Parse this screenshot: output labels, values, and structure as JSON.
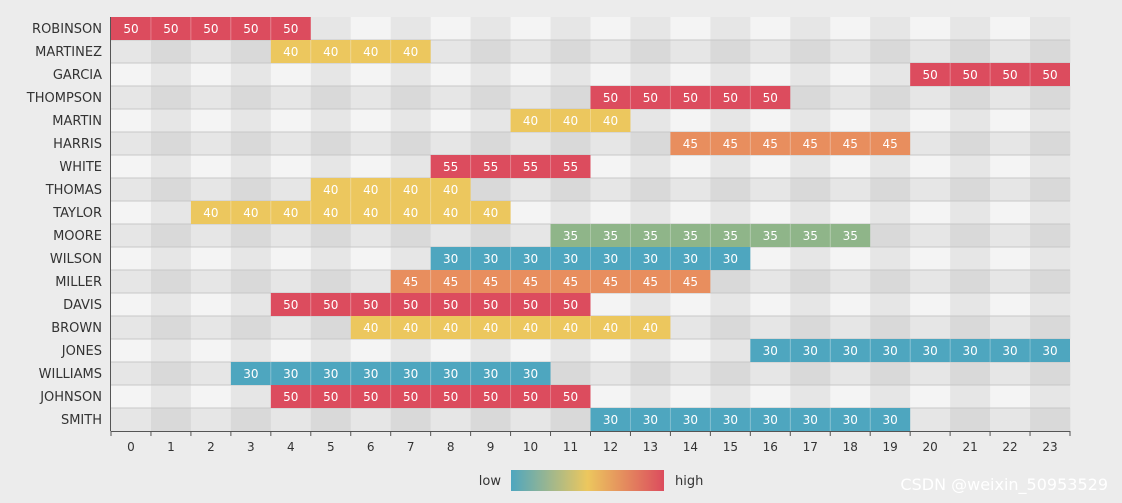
{
  "chart_data": {
    "type": "heatmap",
    "title": "",
    "xlabel": "",
    "ylabel": "",
    "x_categories": [
      "0",
      "1",
      "2",
      "3",
      "4",
      "5",
      "6",
      "7",
      "8",
      "9",
      "10",
      "11",
      "12",
      "13",
      "14",
      "15",
      "16",
      "17",
      "18",
      "19",
      "20",
      "21",
      "22",
      "23"
    ],
    "y_categories": [
      "ROBINSON",
      "MARTINEZ",
      "GARCIA",
      "THOMPSON",
      "MARTIN",
      "HARRIS",
      "WHITE",
      "THOMAS",
      "TAYLOR",
      "MOORE",
      "WILSON",
      "MILLER",
      "DAVIS",
      "BROWN",
      "JONES",
      "WILLIAMS",
      "JOHNSON",
      "SMITH"
    ],
    "rows": [
      {
        "name": "ROBINSON",
        "start": 0,
        "end": 4,
        "value": 50
      },
      {
        "name": "MARTINEZ",
        "start": 4,
        "end": 7,
        "value": 40
      },
      {
        "name": "GARCIA",
        "start": 20,
        "end": 23,
        "value": 50
      },
      {
        "name": "THOMPSON",
        "start": 12,
        "end": 16,
        "value": 50
      },
      {
        "name": "MARTIN",
        "start": 10,
        "end": 12,
        "value": 40
      },
      {
        "name": "HARRIS",
        "start": 14,
        "end": 19,
        "value": 45
      },
      {
        "name": "WHITE",
        "start": 8,
        "end": 11,
        "value": 55
      },
      {
        "name": "THOMAS",
        "start": 5,
        "end": 8,
        "value": 40
      },
      {
        "name": "TAYLOR",
        "start": 2,
        "end": 9,
        "value": 40
      },
      {
        "name": "MOORE",
        "start": 11,
        "end": 18,
        "value": 35
      },
      {
        "name": "WILSON",
        "start": 8,
        "end": 15,
        "value": 30
      },
      {
        "name": "MILLER",
        "start": 7,
        "end": 14,
        "value": 45
      },
      {
        "name": "DAVIS",
        "start": 4,
        "end": 11,
        "value": 50
      },
      {
        "name": "BROWN",
        "start": 6,
        "end": 13,
        "value": 40
      },
      {
        "name": "JONES",
        "start": 16,
        "end": 23,
        "value": 30
      },
      {
        "name": "WILLIAMS",
        "start": 3,
        "end": 10,
        "value": 30
      },
      {
        "name": "JOHNSON",
        "start": 4,
        "end": 11,
        "value": 50
      },
      {
        "name": "SMITH",
        "start": 12,
        "end": 19,
        "value": 30
      }
    ],
    "value_colors": {
      "30": "#4ea6bf",
      "35": "#8fb589",
      "40": "#ecc75e",
      "45": "#e88e5e",
      "50": "#dc4c5e",
      "55": "#dc4c5e"
    },
    "legend": {
      "position": "bottom",
      "low_label": "low",
      "high_label": "high",
      "gradient": [
        "#4ea6bf",
        "#ecc75e",
        "#dc4c5e"
      ]
    },
    "grid": true
  },
  "watermark": "CSDN @weixin_50953529"
}
